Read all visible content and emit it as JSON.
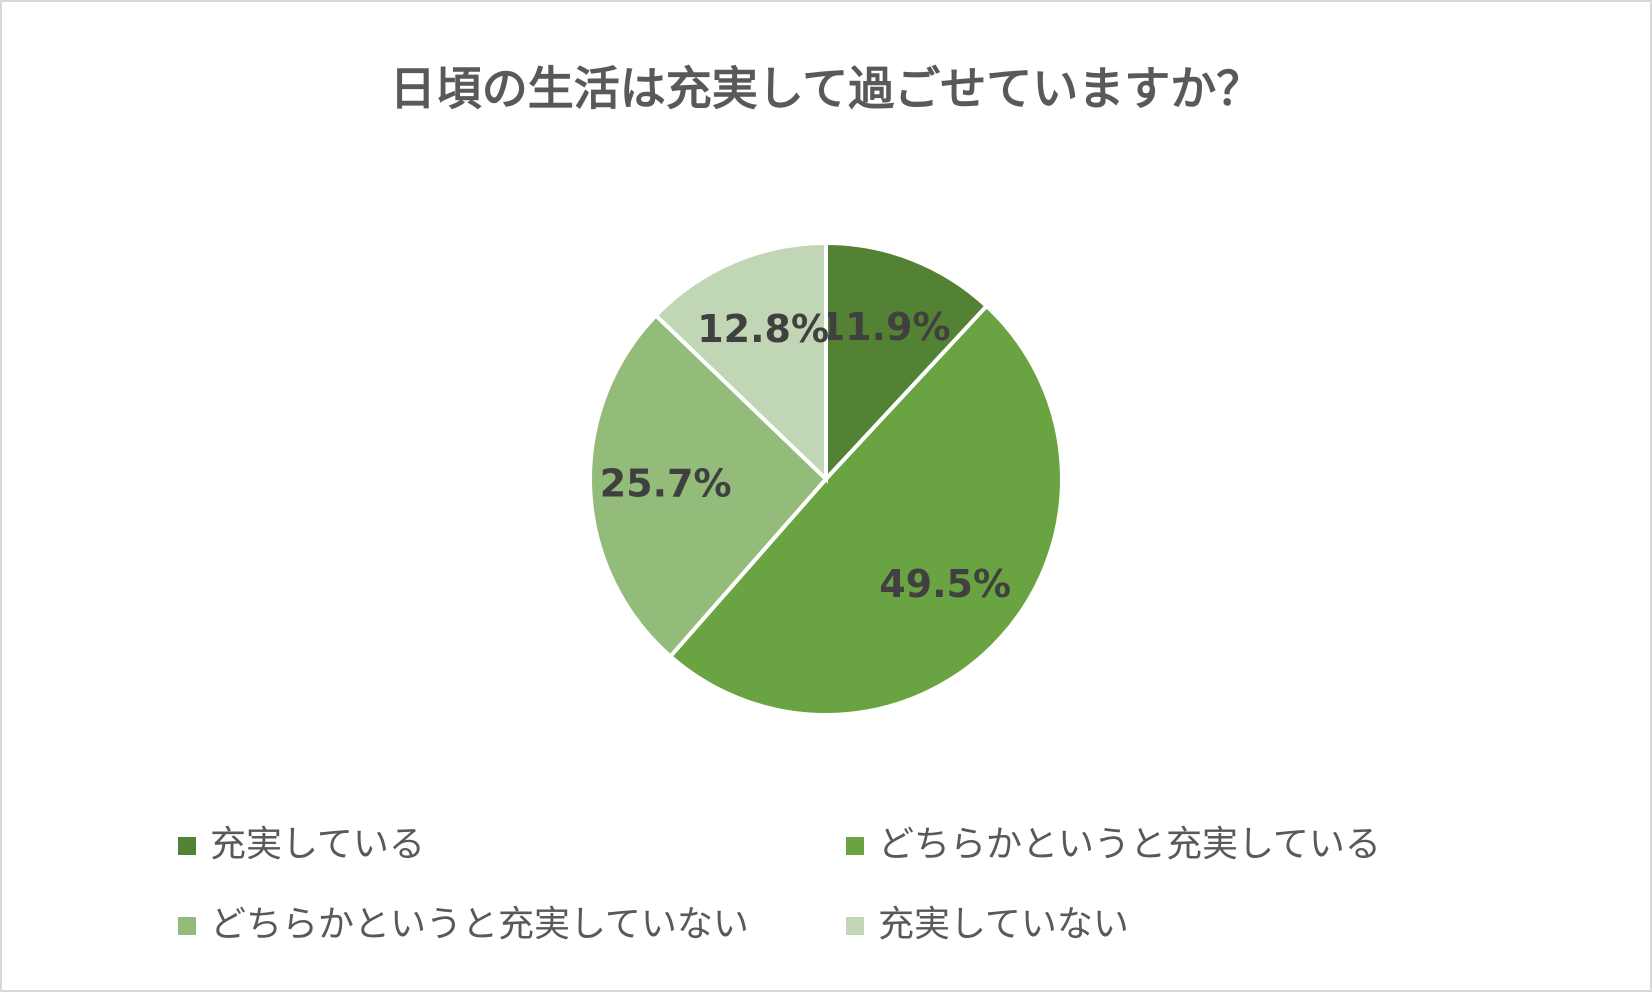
{
  "chart_data": {
    "type": "pie",
    "title": "日頃の生活は充実して過ごせていますか？",
    "categories": [
      "充実している",
      "どちらかというと充実している",
      "どちらかというと充実していない",
      "充実していない"
    ],
    "values": [
      11.9,
      49.5,
      25.7,
      12.8
    ],
    "value_labels": [
      "11.9%",
      "49.5%",
      "25.7%",
      "12.8%"
    ],
    "colors": [
      "#548235",
      "#6aa341",
      "#93bb7a",
      "#c0d6b4"
    ],
    "legend": "bottom"
  }
}
